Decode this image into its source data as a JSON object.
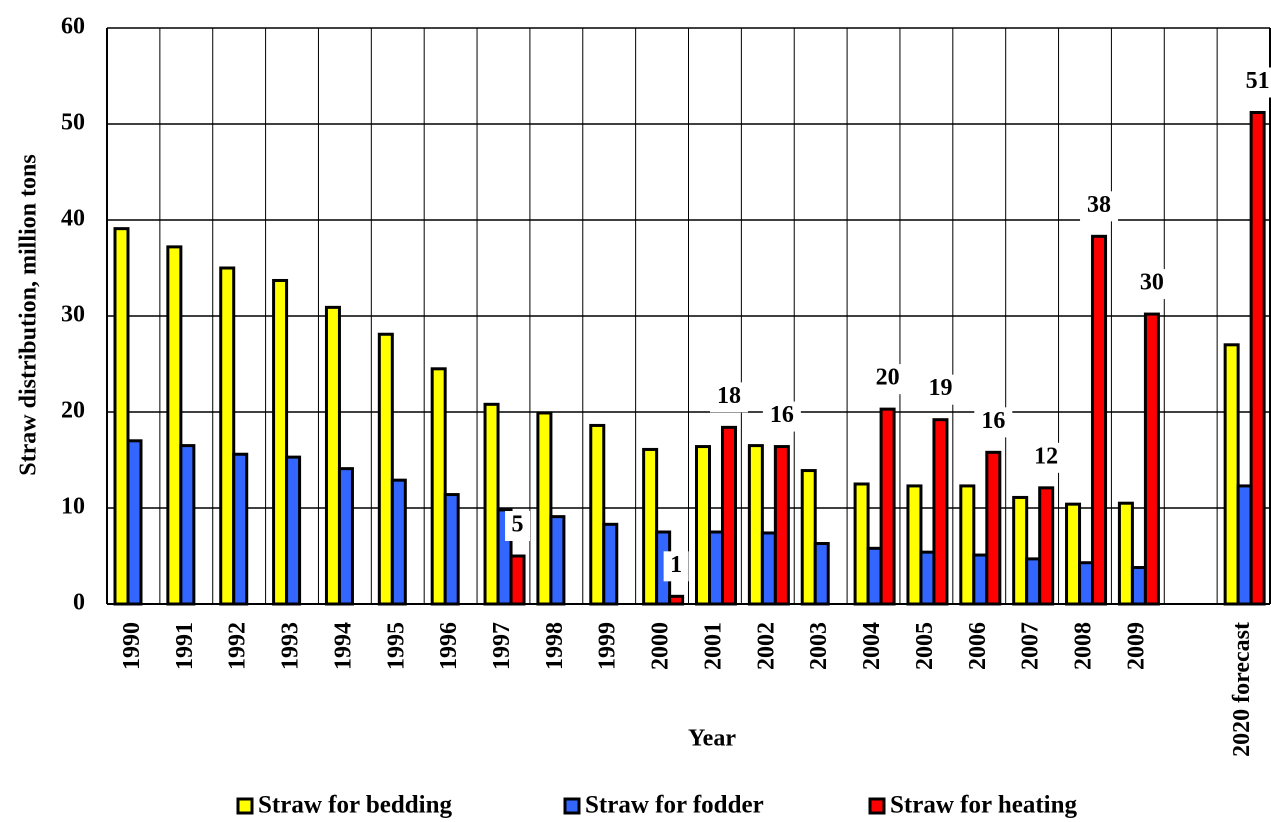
{
  "chart_data": {
    "type": "bar",
    "x_label": "Year",
    "y_label": "Straw distribution,  million  tons",
    "categories": [
      "1990",
      "1991",
      "1992",
      "1993",
      "1994",
      "1995",
      "1996",
      "1997",
      "1998",
      "1999",
      "2000",
      "2001",
      "2002",
      "2003",
      "2004",
      "2005",
      "2006",
      "2007",
      "2008",
      "2009",
      null,
      "2020 forecast"
    ],
    "series": [
      {
        "name": "Straw for bedding",
        "color": "#ffff00",
        "values": [
          39.1,
          37.2,
          35,
          33.7,
          30.9,
          28.1,
          24.5,
          20.8,
          19.9,
          18.6,
          16.1,
          16.4,
          16.5,
          13.9,
          12.5,
          12.3,
          12.3,
          11.1,
          10.4,
          10.5,
          null,
          27
        ]
      },
      {
        "name": "Straw for fodder",
        "color": "#3366ff",
        "values": [
          17,
          16.5,
          15.6,
          15.3,
          14.1,
          12.9,
          11.4,
          9.8,
          9.1,
          8.3,
          7.5,
          7.5,
          7.4,
          6.3,
          5.8,
          5.4,
          5.1,
          4.7,
          4.3,
          3.8,
          null,
          12.3
        ]
      },
      {
        "name": "Straw for heating",
        "color": "#ff0000",
        "values": [
          null,
          null,
          null,
          null,
          null,
          null,
          null,
          5,
          null,
          null,
          0.8,
          18.4,
          16.4,
          null,
          20.3,
          19.2,
          15.8,
          12.1,
          38.3,
          30.2,
          null,
          51.2
        ],
        "value_labels": [
          null,
          null,
          null,
          null,
          null,
          null,
          null,
          "5",
          null,
          null,
          "1",
          "18",
          "16",
          null,
          "20",
          "19",
          "16",
          "12",
          "38",
          "30",
          null,
          "51"
        ]
      }
    ],
    "ylim": [
      0,
      60
    ],
    "yticks": [
      0,
      10,
      20,
      30,
      40,
      50,
      60
    ],
    "grid": true
  }
}
